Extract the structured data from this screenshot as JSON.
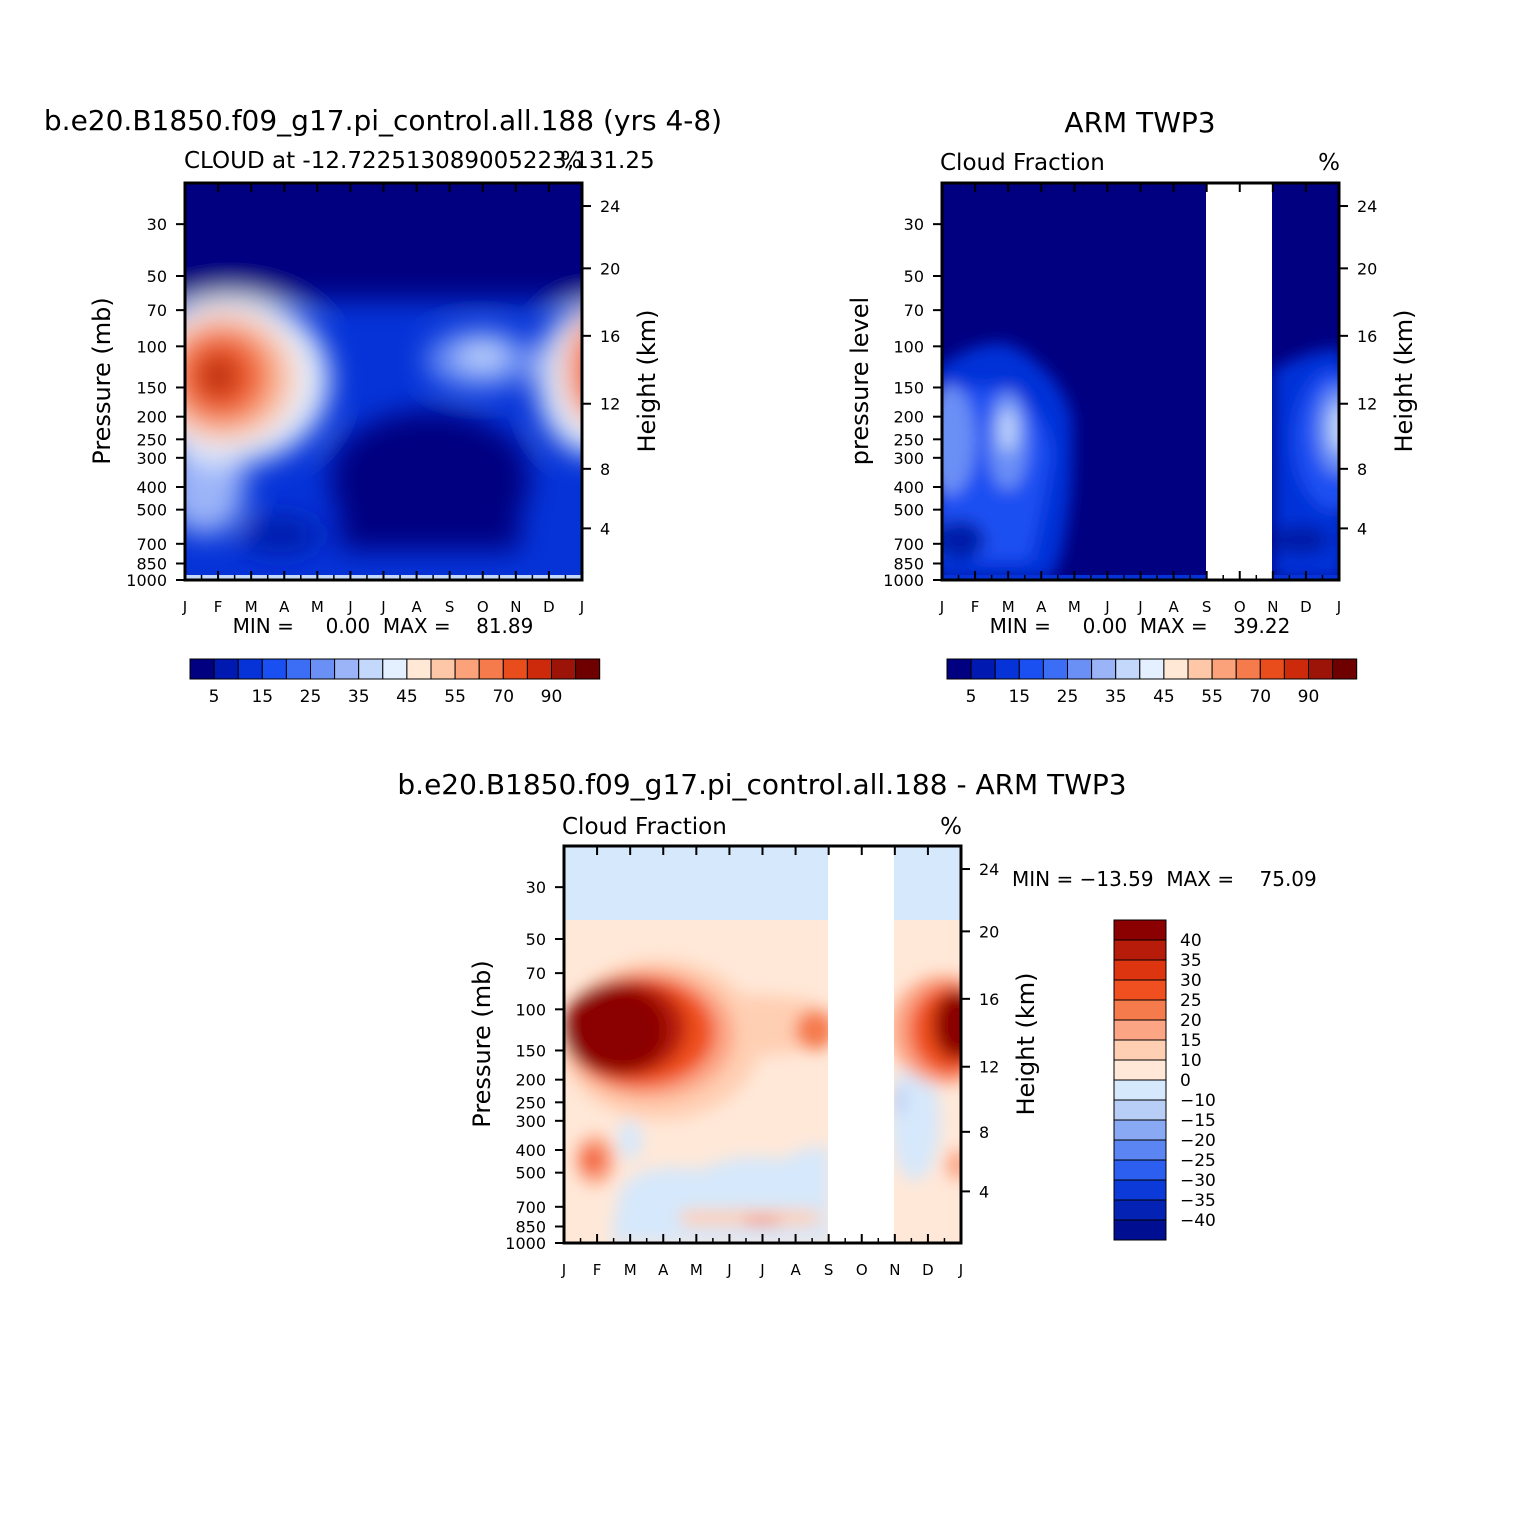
{
  "chart_data": [
    {
      "type": "heatmap",
      "title": "b.e20.B1850.f09_g17.pi_control.all.188 (yrs 4-8)",
      "left_string": "CLOUD at -12.722513089005223,131.25",
      "right_string": "%",
      "ylabel": "Pressure (mb)",
      "ylabel_right": "Height (km)",
      "x_tick_labels": [
        "J",
        "F",
        "M",
        "A",
        "M",
        "J",
        "J",
        "A",
        "S",
        "O",
        "N",
        "D",
        "J"
      ],
      "y_tick_labels": [
        "30",
        "50",
        "70",
        "100",
        "150",
        "200",
        "250",
        "300",
        "400",
        "500",
        "700",
        "850",
        "1000"
      ],
      "y_right_tick_labels": [
        "24",
        "20",
        "16",
        "12",
        "8",
        "4"
      ],
      "yscale": "log",
      "ylim": [
        1000,
        20
      ],
      "stats_text": "MIN =     0.00  MAX =    81.89",
      "colorbar": {
        "orientation": "horizontal",
        "levels": [
          5,
          10,
          15,
          20,
          25,
          30,
          35,
          40,
          45,
          50,
          55,
          60,
          70,
          80,
          90
        ],
        "tick_labels": [
          "5",
          "15",
          "25",
          "35",
          "45",
          "55",
          "70",
          "90"
        ],
        "colors": [
          "#000080",
          "#0019b0",
          "#0533d8",
          "#1a4ff2",
          "#3c6df5",
          "#6a8ff5",
          "#9bb4f8",
          "#c4d8fb",
          "#e4f0ff",
          "#ffe8d6",
          "#fdc7a8",
          "#fba27a",
          "#f57a4c",
          "#ea4d1c",
          "#cc2a0a",
          "#9c1408",
          "#6e0000"
        ]
      }
    },
    {
      "type": "heatmap",
      "title": "ARM TWP3",
      "left_string": "Cloud Fraction",
      "right_string": "%",
      "ylabel": "pressure level",
      "ylabel_right": "Height (km)",
      "x_tick_labels": [
        "J",
        "F",
        "M",
        "A",
        "M",
        "J",
        "J",
        "A",
        "S",
        "O",
        "N",
        "D",
        "J"
      ],
      "y_tick_labels": [
        "30",
        "50",
        "70",
        "100",
        "150",
        "200",
        "250",
        "300",
        "400",
        "500",
        "700",
        "850",
        "1000"
      ],
      "y_right_tick_labels": [
        "24",
        "20",
        "16",
        "12",
        "8",
        "4"
      ],
      "yscale": "log",
      "ylim": [
        1000,
        20
      ],
      "missing_data_months": [
        "S",
        "O",
        "N"
      ],
      "stats_text": "MIN =     0.00  MAX =    39.22",
      "colorbar": {
        "orientation": "horizontal",
        "levels": [
          5,
          10,
          15,
          20,
          25,
          30,
          35,
          40,
          45,
          50,
          55,
          60,
          70,
          80,
          90
        ],
        "tick_labels": [
          "5",
          "15",
          "25",
          "35",
          "45",
          "55",
          "70",
          "90"
        ],
        "colors": [
          "#000080",
          "#0019b0",
          "#0533d8",
          "#1a4ff2",
          "#3c6df5",
          "#6a8ff5",
          "#9bb4f8",
          "#c4d8fb",
          "#e4f0ff",
          "#ffe8d6",
          "#fdc7a8",
          "#fba27a",
          "#f57a4c",
          "#ea4d1c",
          "#cc2a0a",
          "#9c1408",
          "#6e0000"
        ]
      }
    },
    {
      "type": "heatmap",
      "title": "b.e20.B1850.f09_g17.pi_control.all.188 - ARM TWP3",
      "left_string": "Cloud Fraction",
      "right_string": "%",
      "ylabel": "Pressure (mb)",
      "ylabel_right": "Height (km)",
      "x_tick_labels": [
        "J",
        "F",
        "M",
        "A",
        "M",
        "J",
        "J",
        "A",
        "S",
        "O",
        "N",
        "D",
        "J"
      ],
      "y_tick_labels": [
        "30",
        "50",
        "70",
        "100",
        "150",
        "200",
        "250",
        "300",
        "400",
        "500",
        "700",
        "850",
        "1000"
      ],
      "y_right_tick_labels": [
        "24",
        "20",
        "16",
        "12",
        "8",
        "4"
      ],
      "yscale": "log",
      "ylim": [
        1000,
        20
      ],
      "missing_data_months": [
        "S",
        "O",
        "N"
      ],
      "stats_text": "MIN = -13.59  MAX =    75.09",
      "colorbar": {
        "orientation": "vertical",
        "levels": [
          40,
          35,
          30,
          25,
          20,
          15,
          10,
          0,
          -10,
          -15,
          -20,
          -25,
          -30,
          -35,
          -40
        ],
        "tick_labels": [
          "40",
          "35",
          "30",
          "25",
          "20",
          "15",
          "10",
          "0",
          "-10",
          "-15",
          "-20",
          "-25",
          "-30",
          "-35",
          "-40"
        ],
        "colors": [
          "#8b0000",
          "#b71c0b",
          "#dc3510",
          "#f0501f",
          "#f57a4c",
          "#fca585",
          "#ffcfb3",
          "#ffe8d8",
          "#d6e8fb",
          "#b8cef7",
          "#8aa9f5",
          "#5a85f2",
          "#2c5ef0",
          "#0c3ad8",
          "#0422b4",
          "#000f92"
        ]
      }
    }
  ]
}
